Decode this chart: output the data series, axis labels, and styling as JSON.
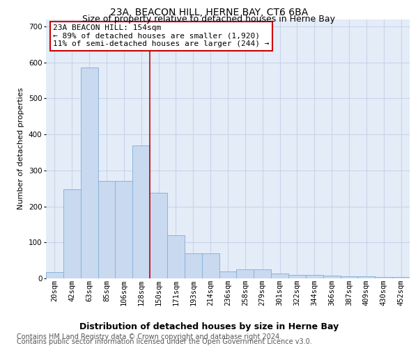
{
  "title": "23A, BEACON HILL, HERNE BAY, CT6 6BA",
  "subtitle": "Size of property relative to detached houses in Herne Bay",
  "xlabel": "Distribution of detached houses by size in Herne Bay",
  "ylabel": "Number of detached properties",
  "footer1": "Contains HM Land Registry data © Crown copyright and database right 2024.",
  "footer2": "Contains public sector information licensed under the Open Government Licence v3.0.",
  "categories": [
    "20sqm",
    "42sqm",
    "63sqm",
    "85sqm",
    "106sqm",
    "128sqm",
    "150sqm",
    "171sqm",
    "193sqm",
    "214sqm",
    "236sqm",
    "258sqm",
    "279sqm",
    "301sqm",
    "322sqm",
    "344sqm",
    "366sqm",
    "387sqm",
    "409sqm",
    "430sqm",
    "452sqm"
  ],
  "values": [
    18,
    248,
    585,
    270,
    270,
    370,
    238,
    120,
    70,
    70,
    20,
    25,
    25,
    13,
    10,
    9,
    8,
    5,
    5,
    4,
    3
  ],
  "bar_color": "#c8d9f0",
  "bar_edge_color": "#8ab4d8",
  "vline_x_index": 6,
  "vline_color": "#cc0000",
  "annotation_text": "23A BEACON HILL: 154sqm\n← 89% of detached houses are smaller (1,920)\n11% of semi-detached houses are larger (244) →",
  "annotation_box_color": "#cc0000",
  "ylim": [
    0,
    720
  ],
  "yticks": [
    0,
    100,
    200,
    300,
    400,
    500,
    600,
    700
  ],
  "grid_color": "#c8d4e8",
  "bg_color": "#e4ecf8",
  "title_fontsize": 10,
  "subtitle_fontsize": 9,
  "xlabel_fontsize": 9,
  "ylabel_fontsize": 8,
  "tick_fontsize": 7.5,
  "annotation_fontsize": 8,
  "footer_fontsize": 7
}
